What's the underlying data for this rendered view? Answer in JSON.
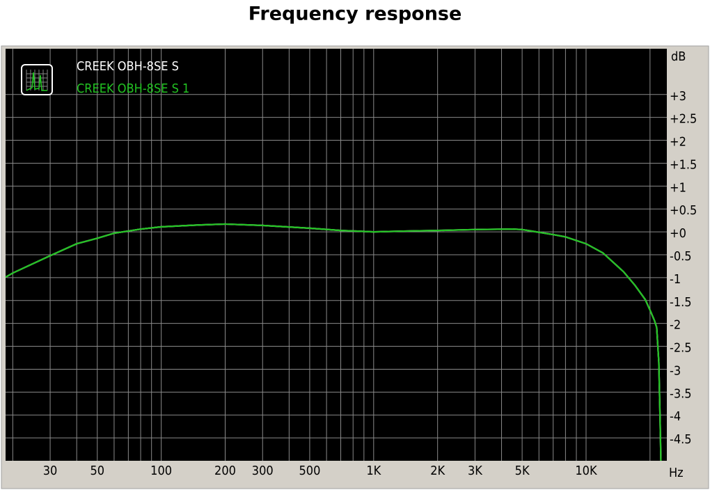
{
  "chart_data": {
    "type": "line",
    "title": "Frequency response",
    "y_label": "dB",
    "x_label": "Hz",
    "x_scale": "log",
    "grid": true,
    "legend": "upper left",
    "xlim": [
      18.5,
      24000
    ],
    "ylim": [
      -5,
      4
    ],
    "xticks": [
      {
        "value": 30,
        "label": "30"
      },
      {
        "value": 50,
        "label": "50"
      },
      {
        "value": 100,
        "label": "100"
      },
      {
        "value": 200,
        "label": "200"
      },
      {
        "value": 300,
        "label": "300"
      },
      {
        "value": 500,
        "label": "500"
      },
      {
        "value": 1000,
        "label": "1K"
      },
      {
        "value": 2000,
        "label": "2K"
      },
      {
        "value": 3000,
        "label": "3K"
      },
      {
        "value": 5000,
        "label": "5K"
      },
      {
        "value": 10000,
        "label": "10K"
      }
    ],
    "xminor": [
      20,
      40,
      60,
      70,
      80,
      90,
      400,
      600,
      700,
      800,
      900,
      4000,
      6000,
      7000,
      8000,
      9000,
      20000
    ],
    "yticks": [
      {
        "value": 3,
        "label": "+3"
      },
      {
        "value": 2.5,
        "label": "+2.5"
      },
      {
        "value": 2,
        "label": "+2"
      },
      {
        "value": 1.5,
        "label": "+1.5"
      },
      {
        "value": 1,
        "label": "+1"
      },
      {
        "value": 0.5,
        "label": "+0.5"
      },
      {
        "value": 0,
        "label": "+0"
      },
      -0.5,
      -1,
      -1.5,
      -2,
      -2.5,
      -3,
      -3.5,
      -4,
      -4.5
    ],
    "x": [
      18.5,
      20,
      30,
      40,
      50,
      60,
      80,
      100,
      150,
      200,
      300,
      500,
      700,
      1000,
      1500,
      2000,
      3000,
      4500,
      5000,
      7000,
      8000,
      10000,
      12000,
      15000,
      17000,
      19000,
      20000,
      21000,
      21500,
      22000,
      22300,
      22500
    ],
    "series": [
      {
        "name": "CREEK OBH-8SE S",
        "color": "#ffffff",
        "values": [
          -0.99,
          -0.9,
          -0.52,
          -0.26,
          -0.14,
          -0.03,
          0.06,
          0.11,
          0.15,
          0.17,
          0.14,
          0.08,
          0.03,
          0.0,
          0.02,
          0.03,
          0.05,
          0.06,
          0.05,
          -0.06,
          -0.11,
          -0.26,
          -0.46,
          -0.87,
          -1.17,
          -1.48,
          -1.71,
          -1.94,
          -2.09,
          -2.85,
          -4.07,
          -5.0
        ]
      },
      {
        "name": "CREEK OBH-8SE S 1",
        "color": "#22c322",
        "values": [
          -0.99,
          -0.9,
          -0.52,
          -0.26,
          -0.14,
          -0.03,
          0.06,
          0.11,
          0.15,
          0.17,
          0.14,
          0.08,
          0.03,
          0.0,
          0.02,
          0.03,
          0.05,
          0.06,
          0.05,
          -0.06,
          -0.11,
          -0.26,
          -0.46,
          -0.87,
          -1.17,
          -1.48,
          -1.71,
          -1.94,
          -2.09,
          -2.85,
          -4.07,
          -5.0
        ]
      }
    ]
  }
}
